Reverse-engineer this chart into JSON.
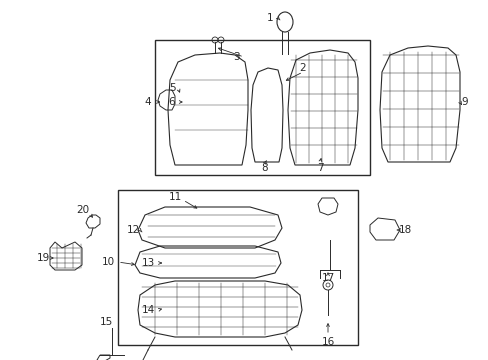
{
  "background_color": "#ffffff",
  "fig_width": 4.89,
  "fig_height": 3.6,
  "dpi": 100
}
